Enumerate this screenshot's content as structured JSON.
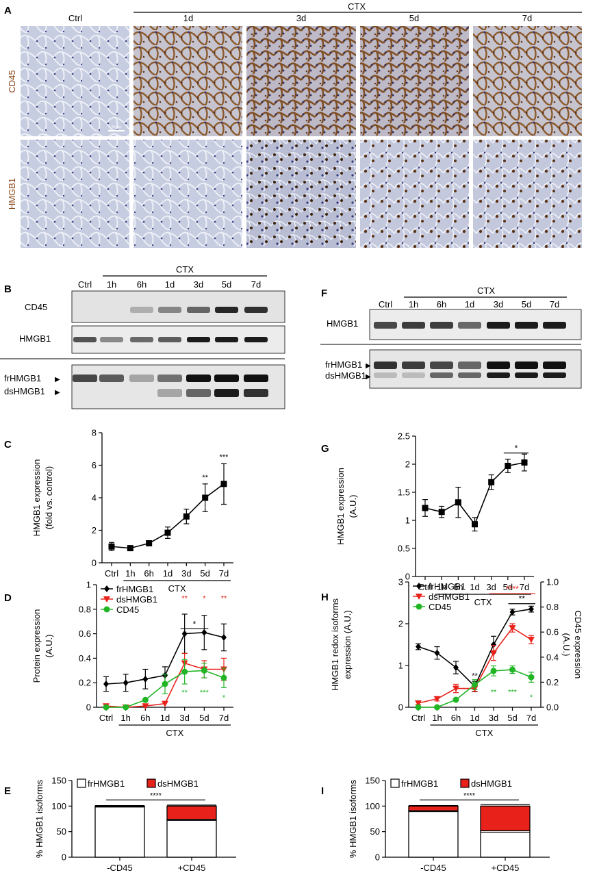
{
  "panelA": {
    "letter": "A",
    "ctx_label": "CTX",
    "columns": [
      "Ctrl",
      "1d",
      "3d",
      "5d",
      "7d"
    ],
    "rows": [
      "CD45",
      "HMGB1"
    ],
    "scale_bar": "50 µm",
    "colors": {
      "tissue": "#c9cfdf",
      "stain": "#7a4a1e",
      "nucleus": "#3e3f80",
      "row_label": "#8a4a1e"
    }
  },
  "panelB": {
    "letter": "B",
    "ctx_label": "CTX",
    "lanes": [
      "Ctrl",
      "1h",
      "6h",
      "1d",
      "3d",
      "5d",
      "7d"
    ],
    "blots": [
      "CD45",
      "HMGB1"
    ],
    "iso_labels": [
      "frHMGB1",
      "dsHMGB1"
    ]
  },
  "panelF": {
    "letter": "F",
    "ctx_label": "CTX",
    "lanes": [
      "Ctrl",
      "1h",
      "6h",
      "1d",
      "3d",
      "5d",
      "7d"
    ],
    "blots": [
      "HMGB1"
    ],
    "iso_labels": [
      "frHMGB1",
      "dsHMGB1"
    ]
  },
  "chart_data": [
    {
      "id": "C",
      "letter": "C",
      "type": "line",
      "categories": [
        "Ctrl",
        "1h",
        "6h",
        "1d",
        "3d",
        "5d",
        "7d"
      ],
      "ylabel": "HMGB1 expression",
      "ylabel2": "(fold vs. control)",
      "ylim": [
        0,
        8
      ],
      "yticks": [
        0,
        2,
        4,
        6,
        8
      ],
      "group_label": "CTX",
      "series": [
        {
          "values": [
            1.0,
            0.9,
            1.2,
            1.85,
            2.85,
            4.0,
            4.85
          ],
          "err": [
            0.25,
            0.1,
            0.15,
            0.35,
            0.45,
            0.85,
            1.25
          ],
          "color": "#000000",
          "marker": "square"
        }
      ],
      "stars": [
        {
          "x": "5d",
          "text": "**",
          "color": "#000000"
        },
        {
          "x": "7d",
          "text": "***",
          "color": "#000000"
        }
      ]
    },
    {
      "id": "G",
      "letter": "G",
      "type": "line",
      "categories": [
        "Ctrl",
        "1h",
        "6h",
        "1d",
        "3d",
        "5d",
        "7d"
      ],
      "ylabel": "HMGB1 expression",
      "ylabel2": "(A.U.)",
      "ylim": [
        0,
        2.5
      ],
      "yticks": [
        0,
        0.5,
        1,
        1.5,
        2,
        2.5
      ],
      "group_label": "CTX",
      "series": [
        {
          "values": [
            1.22,
            1.15,
            1.32,
            0.93,
            1.68,
            1.97,
            2.03
          ],
          "err": [
            0.15,
            0.1,
            0.27,
            0.12,
            0.13,
            0.12,
            0.15
          ],
          "color": "#000000",
          "marker": "square"
        }
      ],
      "brackets": [
        {
          "from": "5d",
          "to": "7d",
          "y": 2.2,
          "text": "*",
          "color": "#000000"
        }
      ]
    },
    {
      "id": "D",
      "letter": "D",
      "type": "line",
      "categories": [
        "Ctrl",
        "1h",
        "6h",
        "1d",
        "3d",
        "5d",
        "7d"
      ],
      "ylabel": "Protein expression",
      "ylabel2": "(A.U.)",
      "ylim": [
        0,
        1.0
      ],
      "yticks": [
        0,
        0.2,
        0.4,
        0.6,
        0.8,
        1.0
      ],
      "group_label": "CTX",
      "legend": [
        "frHMGB1",
        "dsHMGB1",
        "CD45"
      ],
      "series": [
        {
          "name": "frHMGB1",
          "values": [
            0.19,
            0.2,
            0.23,
            0.26,
            0.6,
            0.61,
            0.57
          ],
          "err": [
            0.06,
            0.07,
            0.08,
            0.07,
            0.16,
            0.14,
            0.11
          ],
          "color": "#000000",
          "marker": "diamond"
        },
        {
          "name": "dsHMGB1",
          "values": [
            0.01,
            0.0,
            0.01,
            0.03,
            0.36,
            0.31,
            0.31
          ],
          "err": [
            0.0,
            0.0,
            0.0,
            0.0,
            0.08,
            0.07,
            0.09
          ],
          "color": "#e8221b",
          "marker": "triangle"
        },
        {
          "name": "CD45",
          "values": [
            0.0,
            0.0,
            0.06,
            0.19,
            0.29,
            0.3,
            0.24
          ],
          "err": [
            0.0,
            0.0,
            0.0,
            0.08,
            0.1,
            0.06,
            0.08
          ],
          "color": "#21b526",
          "marker": "circle"
        }
      ],
      "brackets": [
        {
          "from": "3d",
          "to": "5d",
          "y": 0.64,
          "text": "*",
          "color": "#000000"
        }
      ],
      "stars": [
        {
          "x": "3d",
          "text": "**",
          "color": "#e8221b",
          "y": 0.87
        },
        {
          "x": "5d",
          "text": "*",
          "color": "#e8221b",
          "y": 0.87
        },
        {
          "x": "7d",
          "text": "**",
          "color": "#e8221b",
          "y": 0.87
        },
        {
          "x": "3d",
          "text": "**",
          "color": "#21b526",
          "y": 0.1
        },
        {
          "x": "5d",
          "text": "***",
          "color": "#21b526",
          "y": 0.1
        },
        {
          "x": "7d",
          "text": "*",
          "color": "#21b526",
          "y": 0.06
        }
      ]
    },
    {
      "id": "H",
      "letter": "H",
      "type": "line",
      "categories": [
        "Ctrl",
        "1h",
        "6h",
        "1d",
        "3d",
        "5d",
        "7d"
      ],
      "ylabel": "HMGB1 redox isoforms",
      "ylabel2": "expression (A.U.)",
      "ylim": [
        0,
        3
      ],
      "yticks": [
        0,
        1,
        2,
        3
      ],
      "y2label": "CD45 expression",
      "y2label2": "(A.U.)",
      "y2lim": [
        0,
        1.0
      ],
      "y2ticks": [
        0.0,
        0.2,
        0.4,
        0.6,
        0.8,
        1.0
      ],
      "group_label": "CTX",
      "legend": [
        "frHMGB1",
        "dsHMGB1",
        "CD45"
      ],
      "series": [
        {
          "name": "frHMGB1",
          "values": [
            1.45,
            1.3,
            0.95,
            0.5,
            1.5,
            2.28,
            2.35
          ],
          "err": [
            0.07,
            0.15,
            0.15,
            0.12,
            0.2,
            0.07,
            0.07
          ],
          "color": "#000000",
          "marker": "diamond"
        },
        {
          "name": "dsHMGB1",
          "values": [
            0.1,
            0.2,
            0.45,
            0.45,
            1.3,
            1.9,
            1.62
          ],
          "err": [
            0.03,
            0.05,
            0.1,
            0.08,
            0.18,
            0.1,
            0.1
          ],
          "color": "#e8221b",
          "marker": "triangle"
        },
        {
          "name": "CD45",
          "axis": "right",
          "values": [
            0.0,
            0.0,
            0.06,
            0.18,
            0.29,
            0.3,
            0.24
          ],
          "err": [
            0.0,
            0.0,
            0.0,
            0.04,
            0.04,
            0.03,
            0.04
          ],
          "color": "#21b526",
          "marker": "circle"
        }
      ],
      "brackets": [
        {
          "from": "3d",
          "to": "7d",
          "y": 2.72,
          "text": "****",
          "color": "#e8221b"
        },
        {
          "from": "5d",
          "to": "7d",
          "y": 2.48,
          "text": "**",
          "color": "#000000"
        }
      ],
      "stars": [
        {
          "x": "1d",
          "text": "**",
          "color": "#000000",
          "y": 0.7
        },
        {
          "x": "3d",
          "text": "**",
          "color": "#21b526",
          "y": 0.3
        },
        {
          "x": "5d",
          "text": "***",
          "color": "#21b526",
          "y": 0.3
        },
        {
          "x": "7d",
          "text": "*",
          "color": "#21b526",
          "y": 0.18
        }
      ]
    },
    {
      "id": "E",
      "letter": "E",
      "type": "bar",
      "categories": [
        "-CD45",
        "+CD45"
      ],
      "ylabel": "% HMGB1 isoforms",
      "ylim": [
        0,
        150
      ],
      "yticks": [
        0,
        50,
        100,
        150
      ],
      "legend": [
        "frHMGB1",
        "dsHMGB1"
      ],
      "series": [
        {
          "name": "frHMGB1",
          "values": [
            99,
            74
          ],
          "err": [
            1,
            2
          ],
          "color": "#ffffff"
        },
        {
          "name": "dsHMGB1",
          "values": [
            1,
            26
          ],
          "err": [
            0,
            2
          ],
          "color": "#e8221b"
        }
      ],
      "sig": "****"
    },
    {
      "id": "I",
      "letter": "I",
      "type": "bar",
      "categories": [
        "-CD45",
        "+CD45"
      ],
      "ylabel": "% HMGB1 isoforms",
      "ylim": [
        0,
        150
      ],
      "yticks": [
        0,
        50,
        100,
        150
      ],
      "legend": [
        "frHMGB1",
        "dsHMGB1"
      ],
      "series": [
        {
          "name": "frHMGB1",
          "values": [
            91,
            52
          ],
          "err": [
            2,
            3
          ],
          "color": "#ffffff"
        },
        {
          "name": "dsHMGB1",
          "values": [
            9,
            48
          ],
          "err": [
            1,
            3
          ],
          "color": "#e8221b"
        }
      ],
      "sig": "****"
    }
  ]
}
